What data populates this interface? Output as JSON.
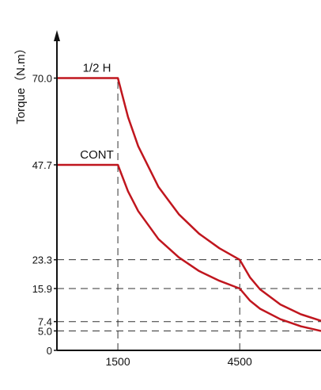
{
  "chart_data": {
    "type": "line",
    "ylabel": "Torque（N.m）",
    "xlabel": "",
    "xlim": [
      0,
      6500
    ],
    "ylim": [
      0,
      75
    ],
    "x_ticks": [
      1500,
      4500
    ],
    "x_tick_labels": [
      "1500",
      "4500"
    ],
    "y_ticks": [
      0,
      5.0,
      7.4,
      15.9,
      23.3,
      47.7,
      70.0
    ],
    "y_tick_labels": [
      "0",
      "5.0",
      "7.4",
      "15.9",
      "23.3",
      "47.7",
      "70.0"
    ],
    "grid": "dashed guide lines at 1500, 4500, 5.0, 7.4, 15.9, 23.3",
    "line_color": "#c0161e",
    "series": [
      {
        "name": "1/2 H",
        "x": [
          0,
          1500,
          1750,
          2000,
          2500,
          3000,
          3500,
          4000,
          4500,
          4500,
          4750,
          5000,
          5500,
          6000,
          6500
        ],
        "y": [
          70.0,
          70.0,
          60.0,
          52.5,
          42.0,
          35.0,
          30.0,
          26.25,
          23.3,
          23.3,
          18.8,
          15.7,
          11.8,
          9.3,
          7.6
        ]
      },
      {
        "name": "CONT",
        "x": [
          0,
          1500,
          1750,
          2000,
          2500,
          3000,
          3500,
          4000,
          4500,
          4500,
          4750,
          5000,
          5500,
          6000,
          6500
        ],
        "y": [
          47.7,
          47.7,
          40.9,
          35.8,
          28.6,
          23.9,
          20.4,
          17.9,
          15.9,
          15.9,
          12.8,
          10.7,
          8.0,
          6.2,
          5.0
        ]
      }
    ]
  }
}
